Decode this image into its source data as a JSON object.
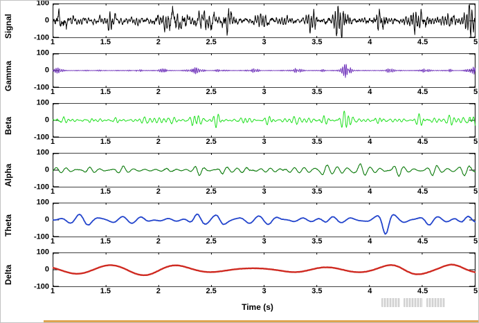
{
  "figure": {
    "xlabel": "Time (s)",
    "x_ticks": [
      "1",
      "1.5",
      "2",
      "2.5",
      "3",
      "3.5",
      "4",
      "4.5",
      "5"
    ],
    "y_ticks": [
      "100",
      "0",
      "-100"
    ],
    "x_tick_values": [
      1,
      1.5,
      2,
      2.5,
      3,
      3.5,
      4,
      4.5,
      5
    ],
    "y_tick_values": [
      100,
      0,
      -100
    ],
    "background": "#ffffff",
    "axis_color": "#000000",
    "bottom_strip_color": "#d99a3d"
  },
  "chart_data": [
    {
      "type": "line",
      "name": "Signal",
      "ylabel": "Signal",
      "color": "#000000",
      "stroke_width": 1,
      "xlim": [
        1,
        5
      ],
      "ylim": [
        -100,
        100
      ],
      "points_n": 1600,
      "seed": 101,
      "synthesis": {
        "n_comp": 10,
        "freq": [
          5,
          45
        ],
        "amp": 40,
        "base": 0.5,
        "noise": 13,
        "bursts": [
          [
            1.1,
            0.05,
            1.1
          ],
          [
            1.55,
            0.04,
            0.9
          ],
          [
            2.15,
            0.1,
            1.5
          ],
          [
            2.45,
            0.08,
            1.7
          ],
          [
            2.65,
            0.05,
            1.3
          ],
          [
            3.0,
            0.05,
            0.7
          ],
          [
            3.45,
            0.05,
            0.8
          ],
          [
            3.72,
            0.07,
            2.2
          ],
          [
            4.1,
            0.05,
            1.7
          ],
          [
            4.45,
            0.08,
            1.7
          ],
          [
            4.75,
            0.04,
            1.1
          ],
          [
            4.95,
            0.05,
            1.9
          ]
        ]
      }
    },
    {
      "type": "line",
      "name": "Gamma",
      "ylabel": "Gamma",
      "color": "#6c2eb9",
      "stroke_width": 0.9,
      "xlim": [
        1,
        5
      ],
      "ylim": [
        -100,
        100
      ],
      "points_n": 1700,
      "seed": 202,
      "synthesis": {
        "n_comp": 8,
        "freq": [
          50,
          80
        ],
        "amp": 9,
        "base": 0.3,
        "noise": 1,
        "bursts": [
          [
            1.05,
            0.04,
            1.4
          ],
          [
            1.8,
            0.03,
            0.9
          ],
          [
            2.05,
            0.04,
            1.4
          ],
          [
            2.35,
            0.06,
            2.2
          ],
          [
            2.6,
            0.04,
            1.1
          ],
          [
            2.9,
            0.04,
            1.4
          ],
          [
            3.3,
            0.05,
            1.4
          ],
          [
            3.55,
            0.03,
            0.9
          ],
          [
            3.78,
            0.06,
            3.2
          ],
          [
            4.2,
            0.04,
            1.3
          ],
          [
            4.5,
            0.05,
            1.5
          ],
          [
            4.75,
            0.03,
            0.9
          ],
          [
            4.97,
            0.05,
            2.9
          ]
        ]
      }
    },
    {
      "type": "line",
      "name": "Beta",
      "ylabel": "Beta",
      "color": "#1ee01e",
      "stroke_width": 1,
      "xlim": [
        1,
        5
      ],
      "ylim": [
        -100,
        100
      ],
      "points_n": 1300,
      "seed": 303,
      "synthesis": {
        "n_comp": 8,
        "freq": [
          14,
          30
        ],
        "amp": 19,
        "base": 0.5,
        "noise": 2,
        "bursts": [
          [
            1.07,
            0.05,
            1.3
          ],
          [
            1.35,
            0.04,
            0.7
          ],
          [
            1.6,
            0.04,
            0.8
          ],
          [
            1.9,
            0.05,
            1.1
          ],
          [
            2.1,
            0.05,
            1.4
          ],
          [
            2.35,
            0.06,
            1.9
          ],
          [
            2.55,
            0.05,
            1.7
          ],
          [
            2.8,
            0.04,
            0.9
          ],
          [
            3.05,
            0.05,
            1.1
          ],
          [
            3.3,
            0.04,
            0.8
          ],
          [
            3.55,
            0.05,
            1.2
          ],
          [
            3.78,
            0.06,
            3.0
          ],
          [
            4.1,
            0.05,
            1.2
          ],
          [
            4.5,
            0.06,
            2.2
          ],
          [
            4.75,
            0.04,
            0.9
          ],
          [
            4.96,
            0.06,
            2.6
          ]
        ]
      }
    },
    {
      "type": "line",
      "name": "Alpha",
      "ylabel": "Alpha",
      "color": "#0a7a0a",
      "stroke_width": 1.1,
      "xlim": [
        1,
        5
      ],
      "ylim": [
        -100,
        100
      ],
      "points_n": 1000,
      "seed": 404,
      "synthesis": {
        "n_comp": 5,
        "freq": [
          8,
          13
        ],
        "amp": 24,
        "base": 0.55,
        "noise": 2,
        "bursts": [
          [
            1.35,
            0.06,
            0.7
          ],
          [
            1.65,
            0.06,
            1.3
          ],
          [
            2.1,
            0.06,
            1.5
          ],
          [
            2.38,
            0.05,
            2.3
          ],
          [
            2.6,
            0.05,
            1.4
          ],
          [
            2.85,
            0.05,
            1.0
          ],
          [
            3.2,
            0.06,
            0.7
          ],
          [
            3.55,
            0.06,
            1.1
          ],
          [
            3.9,
            0.06,
            1.5
          ],
          [
            4.25,
            0.06,
            1.7
          ],
          [
            4.6,
            0.05,
            1.2
          ],
          [
            4.9,
            0.06,
            2.1
          ]
        ]
      }
    },
    {
      "type": "line",
      "name": "Theta",
      "ylabel": "Theta",
      "color": "#2244cc",
      "stroke_width": 1.8,
      "xlim": [
        1,
        5
      ],
      "ylim": [
        -100,
        100
      ],
      "points_n": 800,
      "seed": 505,
      "synthesis": {
        "n_comp": 4,
        "freq": [
          4,
          7.5
        ],
        "amp": 27,
        "base": 0.65,
        "noise": 1.2,
        "bursts": [
          [
            1.3,
            0.1,
            0.5
          ],
          [
            1.9,
            0.09,
            0.4
          ],
          [
            2.35,
            0.08,
            1.4
          ],
          [
            2.6,
            0.07,
            0.9
          ],
          [
            3.1,
            0.09,
            0.5
          ],
          [
            3.6,
            0.09,
            0.6
          ],
          [
            4.15,
            0.06,
            1.8
          ],
          [
            4.55,
            0.08,
            0.7
          ],
          [
            4.9,
            0.08,
            0.9
          ]
        ]
      }
    },
    {
      "type": "line",
      "name": "Delta",
      "ylabel": "Delta",
      "color": "#cf2a21",
      "stroke_width": 2.4,
      "xlim": [
        1,
        5
      ],
      "ylim": [
        -100,
        100
      ],
      "points_n": 600,
      "seed": 606,
      "synthesis": {
        "n_comp": 3,
        "freq": [
          0.6,
          2.2
        ],
        "amp": 28,
        "base": 0.85,
        "noise": 0.6,
        "bursts": [
          [
            2.0,
            0.3,
            0.35
          ],
          [
            3.3,
            0.3,
            0.35
          ],
          [
            4.3,
            0.22,
            0.85
          ],
          [
            4.8,
            0.15,
            0.55
          ]
        ]
      }
    }
  ]
}
